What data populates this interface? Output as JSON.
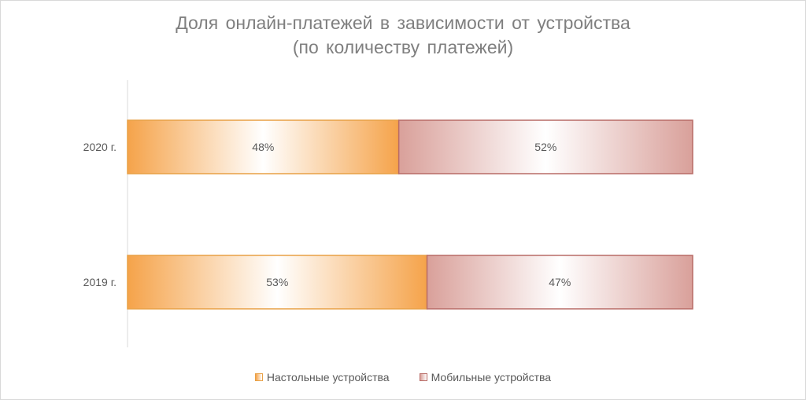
{
  "chart_data": {
    "type": "bar",
    "orientation": "horizontal",
    "stacked": "percent",
    "title_lines": [
      "Доля онлайн-платежей в зависимости от устройства",
      "(по количеству платежей)"
    ],
    "categories": [
      "2020 г.",
      "2019 г."
    ],
    "series": [
      {
        "name": "Настольные устройства",
        "values": [
          48,
          53
        ],
        "labels": [
          "48%",
          "53%"
        ],
        "color": "#f5a34a",
        "edge_color": "#e8a045"
      },
      {
        "name": "Мобильные устройства",
        "values": [
          52,
          47
        ],
        "labels": [
          "52%",
          "47%"
        ],
        "color": "#d9a09a",
        "edge_color": "#b86b66"
      }
    ],
    "xlim": [
      0,
      100
    ],
    "grid": false,
    "legend_position": "bottom"
  }
}
